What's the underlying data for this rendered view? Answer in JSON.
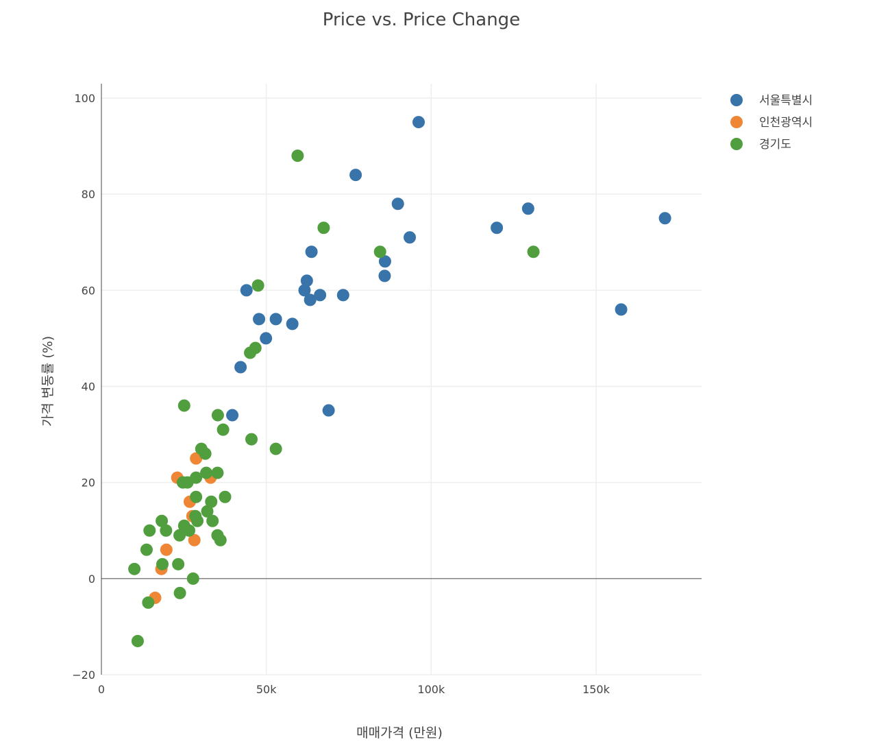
{
  "chart_data": {
    "type": "scatter",
    "title": "Price vs. Price Change",
    "xlabel": "매매가격 (만원)",
    "ylabel": "가격 변동률 (%)",
    "xlim": [
      0,
      182000
    ],
    "ylim": [
      -20,
      103
    ],
    "x_ticks": [
      {
        "value": 0,
        "label": "0"
      },
      {
        "value": 50000,
        "label": "50k"
      },
      {
        "value": 100000,
        "label": "100k"
      },
      {
        "value": 150000,
        "label": "150k"
      }
    ],
    "y_ticks": [
      {
        "value": -20,
        "label": "−20"
      },
      {
        "value": 0,
        "label": "0"
      },
      {
        "value": 20,
        "label": "20"
      },
      {
        "value": 40,
        "label": "40"
      },
      {
        "value": 60,
        "label": "60"
      },
      {
        "value": 80,
        "label": "80"
      },
      {
        "value": 100,
        "label": "100"
      }
    ],
    "grid": true,
    "legend_position": "top-right",
    "series": [
      {
        "name": "서울특별시",
        "color": "#3874a9",
        "points": [
          [
            96200,
            95
          ],
          [
            77100,
            84
          ],
          [
            89900,
            78
          ],
          [
            129400,
            77
          ],
          [
            170900,
            75
          ],
          [
            119900,
            73
          ],
          [
            93500,
            71
          ],
          [
            63700,
            68
          ],
          [
            86000,
            66
          ],
          [
            85900,
            63
          ],
          [
            62300,
            62
          ],
          [
            61600,
            60
          ],
          [
            44000,
            60
          ],
          [
            63300,
            58
          ],
          [
            66300,
            59
          ],
          [
            73300,
            59
          ],
          [
            47800,
            54
          ],
          [
            52900,
            54
          ],
          [
            57900,
            53
          ],
          [
            49900,
            50
          ],
          [
            157600,
            56
          ],
          [
            42200,
            44
          ],
          [
            68900,
            35
          ],
          [
            39700,
            34
          ]
        ]
      },
      {
        "name": "인천광역시",
        "color": "#ef8636",
        "points": [
          [
            28700,
            25
          ],
          [
            23000,
            21
          ],
          [
            33100,
            21
          ],
          [
            26800,
            16
          ],
          [
            27600,
            13
          ],
          [
            28200,
            8
          ],
          [
            19700,
            6
          ],
          [
            18200,
            2
          ],
          [
            16300,
            -4
          ]
        ]
      },
      {
        "name": "경기도",
        "color": "#519e3e",
        "points": [
          [
            59500,
            88
          ],
          [
            67400,
            73
          ],
          [
            131000,
            68
          ],
          [
            84500,
            68
          ],
          [
            47500,
            61
          ],
          [
            46700,
            48
          ],
          [
            45100,
            47
          ],
          [
            25100,
            36
          ],
          [
            35300,
            34
          ],
          [
            36900,
            31
          ],
          [
            45500,
            29
          ],
          [
            52900,
            27
          ],
          [
            30300,
            27
          ],
          [
            31500,
            26
          ],
          [
            31800,
            22
          ],
          [
            35200,
            22
          ],
          [
            28700,
            21
          ],
          [
            24700,
            20
          ],
          [
            26100,
            20
          ],
          [
            28700,
            17
          ],
          [
            37500,
            17
          ],
          [
            33300,
            16
          ],
          [
            32100,
            14
          ],
          [
            28500,
            13
          ],
          [
            29100,
            12
          ],
          [
            33700,
            12
          ],
          [
            18300,
            12
          ],
          [
            25100,
            11
          ],
          [
            26600,
            10
          ],
          [
            14600,
            10
          ],
          [
            19600,
            10
          ],
          [
            23700,
            9
          ],
          [
            35200,
            9
          ],
          [
            36100,
            8
          ],
          [
            13700,
            6
          ],
          [
            18500,
            3
          ],
          [
            23300,
            3
          ],
          [
            10000,
            2
          ],
          [
            27800,
            0
          ],
          [
            23800,
            -3
          ],
          [
            14200,
            -5
          ],
          [
            11000,
            -13
          ]
        ]
      }
    ]
  }
}
